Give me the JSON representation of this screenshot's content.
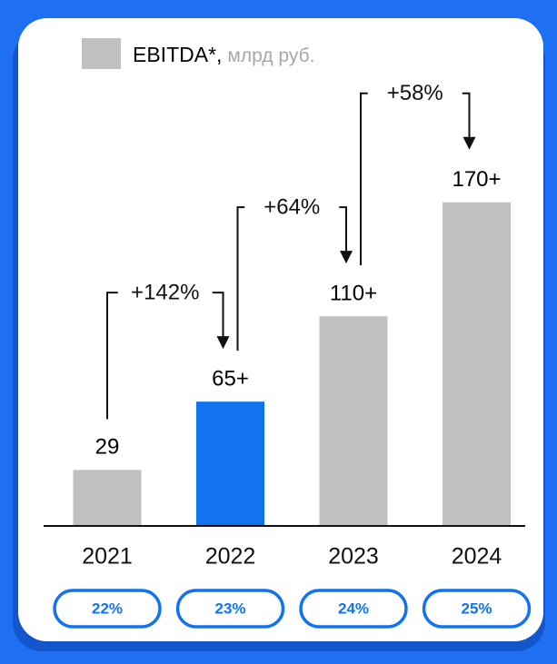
{
  "chart_data": {
    "type": "bar",
    "legend": "EBITDA*,",
    "unit": "млрд руб.",
    "categories": [
      "2021",
      "2022",
      "2023",
      "2024"
    ],
    "values": [
      29,
      65,
      110,
      170
    ],
    "value_labels": [
      "29",
      "65+",
      "110+",
      "170+"
    ],
    "colors": [
      "#c0c0c0",
      "#1273f0",
      "#c0c0c0",
      "#c0c0c0"
    ],
    "legend_color": "#c0c0c0",
    "annotations": [
      "+142%",
      "+64%",
      "+58%"
    ],
    "margin_labels": [
      "22%",
      "23%",
      "24%",
      "25%"
    ]
  }
}
